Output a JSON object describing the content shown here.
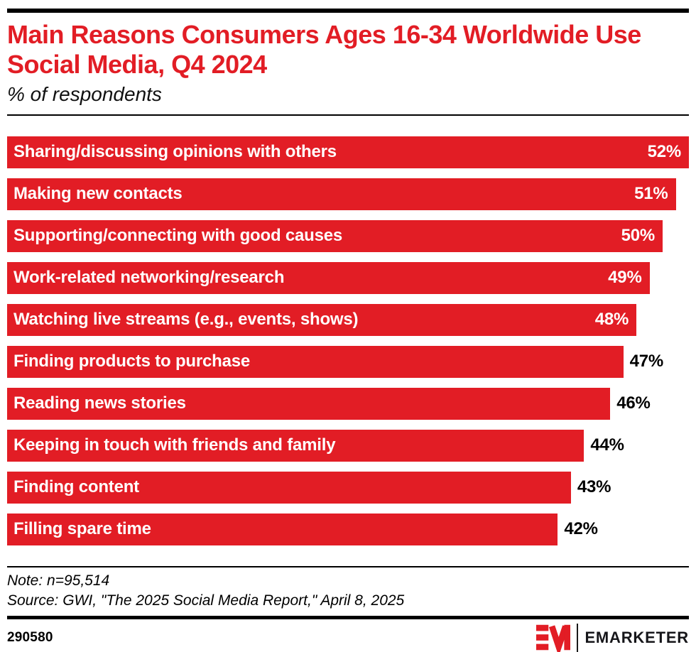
{
  "page": {
    "title": "Main Reasons Consumers Ages 16-34 Worldwide Use Social Media, Q4 2024",
    "subtitle": "% of respondents"
  },
  "chart_data": {
    "type": "bar",
    "orientation": "horizontal",
    "title": "Main Reasons Consumers Ages 16-34 Worldwide Use Social Media, Q4 2024",
    "subtitle": "% of respondents",
    "xlim": [
      0,
      52
    ],
    "grid": false,
    "legend": "none",
    "bar_color": "#e21d25",
    "categories": [
      "Sharing/discussing opinions with others",
      "Making new contacts",
      "Supporting/connecting with good causes",
      "Work-related networking/research",
      "Watching live streams (e.g., events, shows)",
      "Finding products to purchase",
      "Reading news stories",
      "Keeping in touch with friends and family",
      "Finding content",
      "Filling spare time"
    ],
    "values": [
      52,
      51,
      50,
      49,
      48,
      47,
      46,
      44,
      43,
      42
    ],
    "value_labels": [
      "52%",
      "51%",
      "50%",
      "49%",
      "48%",
      "47%",
      "46%",
      "44%",
      "43%",
      "42%"
    ],
    "value_label_position": [
      "inside",
      "inside",
      "inside",
      "inside",
      "inside",
      "outside",
      "outside",
      "outside",
      "outside",
      "outside"
    ]
  },
  "footer": {
    "note": "Note: n=95,514",
    "source": "Source: GWI, \"The 2025 Social Media Report,\" April 8, 2025",
    "chart_id": "290580",
    "logo_text": "EMARKETER"
  },
  "colors": {
    "accent_red": "#e21d25",
    "text_black": "#000000",
    "bar_label_white": "#ffffff"
  }
}
